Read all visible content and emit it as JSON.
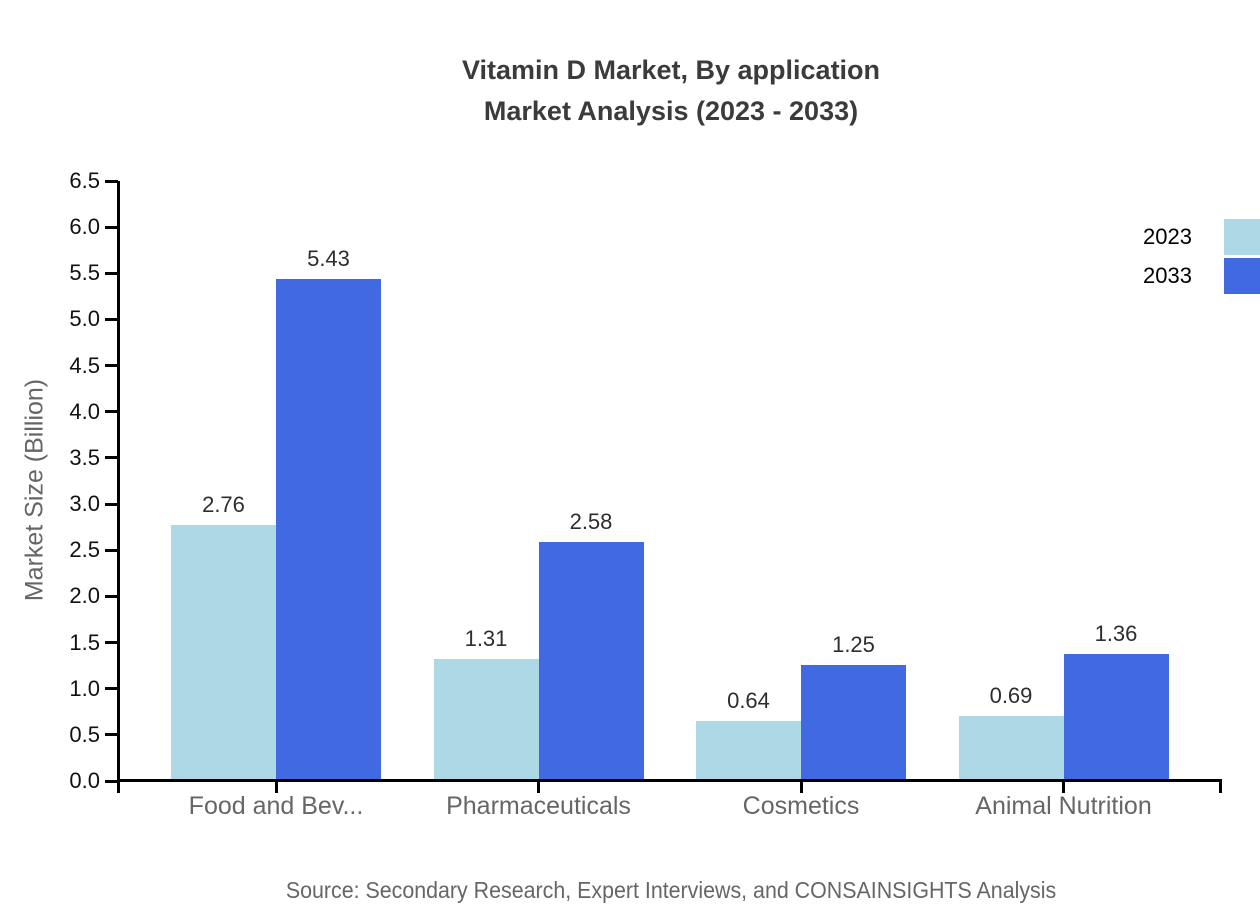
{
  "page": {
    "background": "#ffffff"
  },
  "chart_data": {
    "type": "bar",
    "title": "Vitamin D Market, By application",
    "subtitle": "Market Analysis (2023 - 2033)",
    "categories": [
      "Food and Bev...",
      "Pharmaceuticals",
      "Cosmetics",
      "Animal Nutrition"
    ],
    "series": [
      {
        "name": "2023",
        "color": "#ADD8E6",
        "values": [
          2.76,
          1.31,
          0.64,
          0.69
        ]
      },
      {
        "name": "2033",
        "color": "#4169E1",
        "values": [
          5.43,
          2.58,
          1.25,
          1.36
        ]
      }
    ],
    "xlabel": "",
    "ylabel": "Market Size (Billion)",
    "ylim": [
      0,
      6.5
    ],
    "ytick_step": 0.5,
    "ytick_format_decimals": 1,
    "value_label_decimals": 2,
    "grid": false,
    "value_labels": true,
    "legend_position": "top-right",
    "axis_color": "#000000",
    "source": "Source: Secondary Research, Expert Interviews, and CONSAINSIGHTS Analysis",
    "text_colors": {
      "title": "#3b3b3b",
      "tick_labels": "#111111",
      "category_labels": "#666666",
      "value_labels": "#2e2e2e",
      "source": "#666666",
      "legend": "#000000"
    }
  }
}
